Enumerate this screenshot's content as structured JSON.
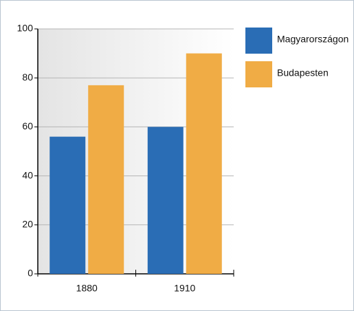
{
  "chart_data": {
    "type": "bar",
    "categories": [
      "1880",
      "1910"
    ],
    "series": [
      {
        "name": "Magyarországon",
        "color": "#2a6db5",
        "values": [
          56,
          60
        ]
      },
      {
        "name": "Budapesten",
        "color": "#f0ac45",
        "values": [
          77,
          90
        ]
      }
    ],
    "ylim": [
      0,
      100
    ],
    "yticks": [
      0,
      20,
      40,
      60,
      80,
      100
    ],
    "grid": true,
    "legend": "right"
  }
}
